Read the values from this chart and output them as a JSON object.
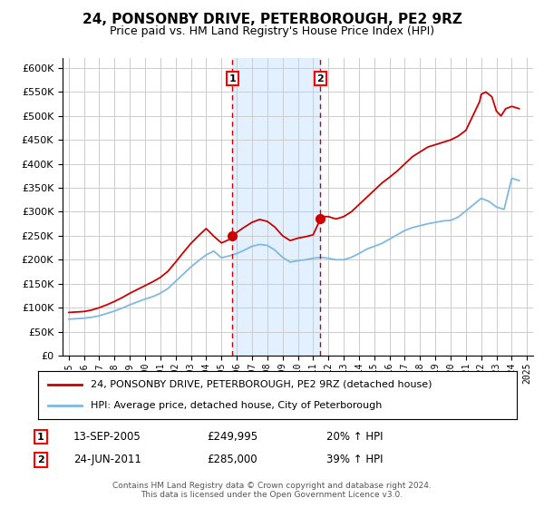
{
  "title": "24, PONSONBY DRIVE, PETERBOROUGH, PE2 9RZ",
  "subtitle": "Price paid vs. HM Land Registry's House Price Index (HPI)",
  "ylim": [
    0,
    620000
  ],
  "yticks": [
    0,
    50000,
    100000,
    150000,
    200000,
    250000,
    300000,
    350000,
    400000,
    450000,
    500000,
    550000,
    600000
  ],
  "xlim_start": 1994.6,
  "xlim_end": 2025.4,
  "background_color": "#ffffff",
  "plot_bg_color": "#ffffff",
  "grid_color": "#cccccc",
  "hpi_color": "#7fb8e0",
  "price_color": "#cc0000",
  "sale1_year": 2005.71,
  "sale1_price": 249995,
  "sale2_year": 2011.48,
  "sale2_price": 285000,
  "legend_line1": "24, PONSONBY DRIVE, PETERBOROUGH, PE2 9RZ (detached house)",
  "legend_line2": "HPI: Average price, detached house, City of Peterborough",
  "annotation1_label": "1",
  "annotation1_date": "13-SEP-2005",
  "annotation1_price": "£249,995",
  "annotation1_hpi": "20% ↑ HPI",
  "annotation2_label": "2",
  "annotation2_date": "24-JUN-2011",
  "annotation2_price": "£285,000",
  "annotation2_hpi": "39% ↑ HPI",
  "footer": "Contains HM Land Registry data © Crown copyright and database right 2024.\nThis data is licensed under the Open Government Licence v3.0.",
  "shaded_region_color": "#ddeeff",
  "hpi_years": [
    1995.0,
    1995.5,
    1996.0,
    1996.5,
    1997.0,
    1997.5,
    1998.0,
    1998.5,
    1999.0,
    1999.5,
    2000.0,
    2000.5,
    2001.0,
    2001.5,
    2002.0,
    2002.5,
    2003.0,
    2003.5,
    2004.0,
    2004.5,
    2005.0,
    2005.5,
    2006.0,
    2006.5,
    2007.0,
    2007.5,
    2008.0,
    2008.5,
    2009.0,
    2009.5,
    2010.0,
    2010.5,
    2011.0,
    2011.5,
    2012.0,
    2012.5,
    2013.0,
    2013.5,
    2014.0,
    2014.5,
    2015.0,
    2015.5,
    2016.0,
    2016.5,
    2017.0,
    2017.5,
    2018.0,
    2018.5,
    2019.0,
    2019.5,
    2020.0,
    2020.5,
    2021.0,
    2021.5,
    2022.0,
    2022.5,
    2023.0,
    2023.5,
    2024.0,
    2024.5
  ],
  "hpi_values": [
    76000,
    77000,
    78000,
    80000,
    83000,
    88000,
    93000,
    99000,
    106000,
    112000,
    118000,
    123000,
    130000,
    140000,
    155000,
    170000,
    185000,
    198000,
    210000,
    218000,
    204000,
    208000,
    213000,
    220000,
    228000,
    232000,
    230000,
    220000,
    205000,
    195000,
    198000,
    200000,
    203000,
    205000,
    203000,
    200000,
    200000,
    205000,
    213000,
    222000,
    228000,
    234000,
    243000,
    252000,
    261000,
    267000,
    271000,
    275000,
    278000,
    281000,
    282000,
    289000,
    302000,
    315000,
    328000,
    322000,
    310000,
    305000,
    370000,
    365000
  ],
  "red_years": [
    1995.0,
    1995.5,
    1996.0,
    1996.5,
    1997.0,
    1997.5,
    1998.0,
    1998.5,
    1999.0,
    1999.5,
    2000.0,
    2000.5,
    2001.0,
    2001.5,
    2002.0,
    2002.5,
    2003.0,
    2003.5,
    2004.0,
    2004.5,
    2005.0,
    2005.5,
    2005.71,
    2006.0,
    2006.5,
    2007.0,
    2007.5,
    2008.0,
    2008.5,
    2009.0,
    2009.5,
    2010.0,
    2010.5,
    2011.0,
    2011.48,
    2011.5,
    2012.0,
    2012.5,
    2013.0,
    2013.5,
    2014.0,
    2014.5,
    2015.0,
    2015.5,
    2016.0,
    2016.5,
    2017.0,
    2017.5,
    2018.0,
    2018.5,
    2019.0,
    2019.5,
    2020.0,
    2020.5,
    2021.0,
    2021.3,
    2021.6,
    2021.9,
    2022.0,
    2022.3,
    2022.7,
    2023.0,
    2023.3,
    2023.6,
    2024.0,
    2024.5
  ],
  "red_values": [
    90000,
    91000,
    92000,
    95000,
    100000,
    106000,
    113000,
    121000,
    130000,
    138000,
    146000,
    154000,
    163000,
    176000,
    195000,
    215000,
    234000,
    250000,
    265000,
    249000,
    235000,
    242000,
    249995,
    257000,
    268000,
    278000,
    284000,
    280000,
    268000,
    250000,
    240000,
    245000,
    248000,
    252000,
    285000,
    290000,
    290000,
    285000,
    290000,
    300000,
    315000,
    330000,
    345000,
    360000,
    372000,
    385000,
    400000,
    415000,
    425000,
    435000,
    440000,
    445000,
    450000,
    458000,
    470000,
    490000,
    510000,
    530000,
    545000,
    550000,
    540000,
    510000,
    500000,
    515000,
    520000,
    515000
  ]
}
